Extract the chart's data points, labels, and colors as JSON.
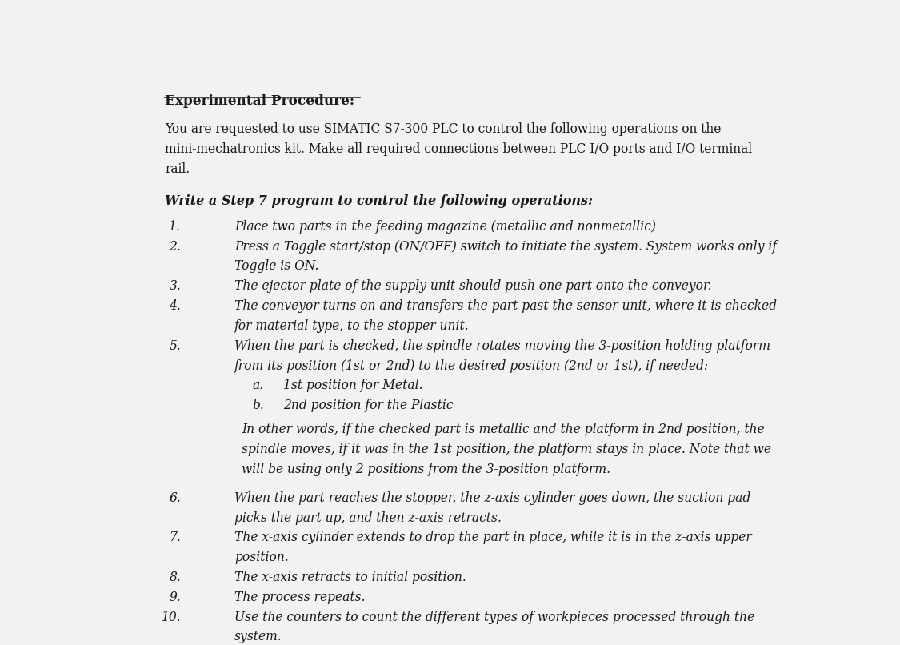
{
  "bg_color": "#f2f2f2",
  "text_color": "#1a1a1a",
  "title": "Experimental Procedure:",
  "intro_lines": [
    "You are requested to use SIMATIC S7-300 PLC to control the following operations on the",
    "mini-mechatronics kit. Make all required connections between PLC I/O ports and I/O terminal",
    "rail."
  ],
  "subheading": "Write a Step 7 program to control the following operations:",
  "items": [
    {
      "num": "1.",
      "lines": [
        "Place two parts in the feeding magazine (metallic and nonmetallic)"
      ],
      "type": "normal"
    },
    {
      "num": "2.",
      "lines": [
        "Press a Toggle start/stop (ON/OFF) switch to initiate the system. System works only if",
        "Toggle is ON."
      ],
      "type": "normal"
    },
    {
      "num": "3.",
      "lines": [
        "The ejector plate of the supply unit should push one part onto the conveyor."
      ],
      "type": "normal"
    },
    {
      "num": "4.",
      "lines": [
        "The conveyor turns on and transfers the part past the sensor unit, where it is checked",
        "for material type, to the stopper unit."
      ],
      "type": "normal"
    },
    {
      "num": "5.",
      "lines": [
        "When the part is checked, the spindle rotates moving the 3-position holding platform",
        "from its position (1st or 2nd) to the desired position (2nd or 1st), if needed:"
      ],
      "type": "normal"
    },
    {
      "num": "a.",
      "lines": [
        "1st position for Metal."
      ],
      "type": "subitem"
    },
    {
      "num": "b.",
      "lines": [
        "2nd position for the Plastic"
      ],
      "type": "subitem"
    },
    {
      "num": "",
      "lines": [
        "In other words, if the checked part is metallic and the platform in 2nd position, the",
        "spindle moves, if it was in the 1st position, the platform stays in place. Note that we",
        "will be using only 2 positions from the 3-position platform."
      ],
      "type": "block"
    },
    {
      "num": "6.",
      "lines": [
        "When the part reaches the stopper, the z-axis cylinder goes down, the suction pad",
        "picks the part up, and then z-axis retracts."
      ],
      "type": "normal"
    },
    {
      "num": "7.",
      "lines": [
        "The x-axis cylinder extends to drop the part in place, while it is in the z-axis upper",
        "position."
      ],
      "type": "normal"
    },
    {
      "num": "8.",
      "lines": [
        "The x-axis retracts to initial position."
      ],
      "type": "normal"
    },
    {
      "num": "9.",
      "lines": [
        "The process repeats."
      ],
      "type": "normal"
    },
    {
      "num": "10.",
      "lines": [
        "Use the counters to count the different types of workpieces processed through the",
        "system."
      ],
      "type": "normal"
    }
  ]
}
